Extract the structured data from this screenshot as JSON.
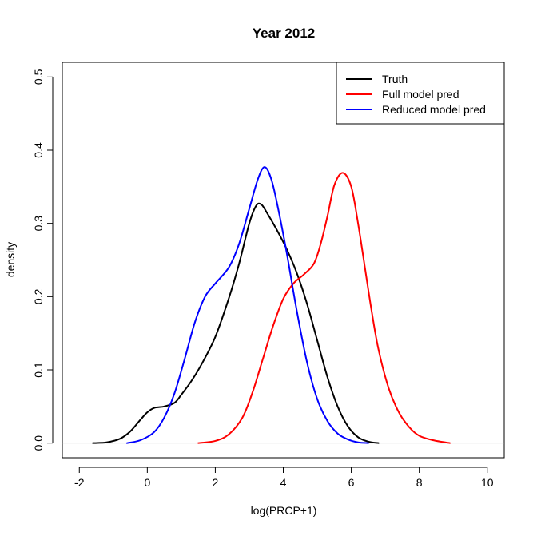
{
  "chart_data": {
    "type": "line",
    "title": "Year 2012",
    "xlabel": "log(PRCP+1)",
    "ylabel": "density",
    "xlim": [
      -2.5,
      10.5
    ],
    "ylim": [
      -0.02,
      0.52
    ],
    "x_ticks": [
      -2,
      0,
      2,
      4,
      6,
      8,
      10
    ],
    "y_ticks": [
      0.0,
      0.1,
      0.2,
      0.3,
      0.4,
      0.5
    ],
    "x_tick_labels": [
      "-2",
      "0",
      "2",
      "4",
      "6",
      "8",
      "10"
    ],
    "y_tick_labels": [
      "0.0",
      "0.1",
      "0.2",
      "0.3",
      "0.4",
      "0.5"
    ],
    "baseline": {
      "y": 0,
      "color": "#bebebe"
    },
    "grid": false,
    "legend_position": "top-right",
    "series": [
      {
        "name": "Truth",
        "color": "#000000",
        "points": [
          [
            -1.6,
            0.0
          ],
          [
            -1.2,
            0.001
          ],
          [
            -0.8,
            0.006
          ],
          [
            -0.5,
            0.016
          ],
          [
            -0.2,
            0.032
          ],
          [
            0.0,
            0.042
          ],
          [
            0.2,
            0.048
          ],
          [
            0.5,
            0.05
          ],
          [
            0.8,
            0.055
          ],
          [
            1.0,
            0.066
          ],
          [
            1.3,
            0.085
          ],
          [
            1.6,
            0.108
          ],
          [
            2.0,
            0.145
          ],
          [
            2.4,
            0.198
          ],
          [
            2.7,
            0.245
          ],
          [
            3.0,
            0.3
          ],
          [
            3.2,
            0.324
          ],
          [
            3.35,
            0.326
          ],
          [
            3.5,
            0.316
          ],
          [
            3.8,
            0.292
          ],
          [
            4.1,
            0.265
          ],
          [
            4.4,
            0.232
          ],
          [
            4.7,
            0.19
          ],
          [
            5.0,
            0.14
          ],
          [
            5.3,
            0.09
          ],
          [
            5.6,
            0.05
          ],
          [
            5.9,
            0.023
          ],
          [
            6.2,
            0.008
          ],
          [
            6.5,
            0.002
          ],
          [
            6.8,
            0.0
          ]
        ]
      },
      {
        "name": "Full model pred",
        "color": "#ff0000",
        "points": [
          [
            1.5,
            0.0
          ],
          [
            2.0,
            0.003
          ],
          [
            2.4,
            0.012
          ],
          [
            2.8,
            0.035
          ],
          [
            3.1,
            0.07
          ],
          [
            3.4,
            0.115
          ],
          [
            3.7,
            0.16
          ],
          [
            4.0,
            0.197
          ],
          [
            4.3,
            0.218
          ],
          [
            4.6,
            0.23
          ],
          [
            4.9,
            0.245
          ],
          [
            5.1,
            0.272
          ],
          [
            5.3,
            0.31
          ],
          [
            5.5,
            0.352
          ],
          [
            5.75,
            0.369
          ],
          [
            6.0,
            0.35
          ],
          [
            6.2,
            0.3
          ],
          [
            6.4,
            0.24
          ],
          [
            6.6,
            0.18
          ],
          [
            6.8,
            0.128
          ],
          [
            7.1,
            0.075
          ],
          [
            7.4,
            0.042
          ],
          [
            7.7,
            0.022
          ],
          [
            8.0,
            0.01
          ],
          [
            8.4,
            0.004
          ],
          [
            8.9,
            0.0
          ]
        ]
      },
      {
        "name": "Reduced model pred",
        "color": "#0000ff",
        "points": [
          [
            -0.6,
            0.0
          ],
          [
            -0.2,
            0.004
          ],
          [
            0.2,
            0.015
          ],
          [
            0.5,
            0.035
          ],
          [
            0.8,
            0.068
          ],
          [
            1.1,
            0.115
          ],
          [
            1.4,
            0.165
          ],
          [
            1.7,
            0.2
          ],
          [
            2.0,
            0.218
          ],
          [
            2.4,
            0.24
          ],
          [
            2.7,
            0.272
          ],
          [
            3.0,
            0.32
          ],
          [
            3.25,
            0.36
          ],
          [
            3.45,
            0.377
          ],
          [
            3.65,
            0.36
          ],
          [
            3.85,
            0.32
          ],
          [
            4.1,
            0.26
          ],
          [
            4.4,
            0.18
          ],
          [
            4.7,
            0.11
          ],
          [
            5.0,
            0.06
          ],
          [
            5.3,
            0.03
          ],
          [
            5.6,
            0.013
          ],
          [
            5.9,
            0.005
          ],
          [
            6.2,
            0.001
          ],
          [
            6.5,
            0.0
          ]
        ]
      }
    ]
  }
}
